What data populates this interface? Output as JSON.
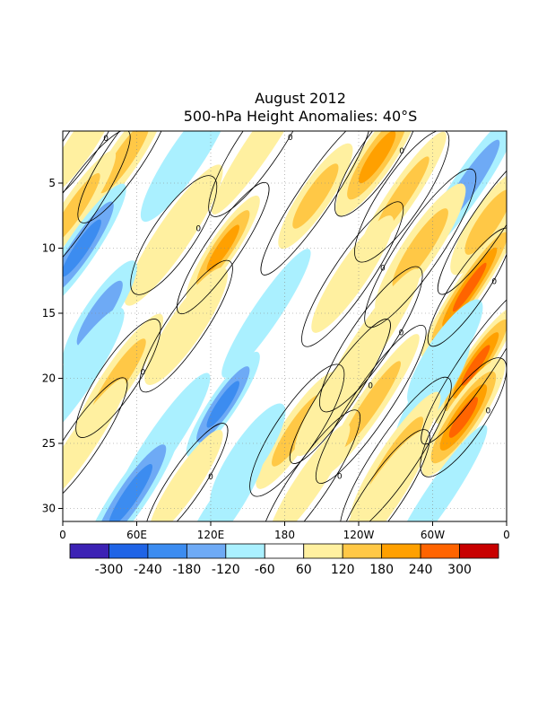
{
  "chart_data": {
    "type": "heatmap",
    "title": "August 2012",
    "subtitle": "500-hPa Height Anomalies: 40°S",
    "x_ticks": [
      "0",
      "60E",
      "120E",
      "180",
      "120W",
      "60W",
      "0"
    ],
    "y_ticks": [
      "5",
      "10",
      "15",
      "20",
      "25",
      "30"
    ],
    "y_tick_values": [
      5,
      10,
      15,
      20,
      25,
      30
    ],
    "ylim": [
      31,
      1
    ],
    "xlim_degrees_east": [
      0,
      360
    ],
    "grid": "dotted",
    "colorbar": {
      "labels": [
        "-300",
        "-240",
        "-180",
        "-120",
        "-60",
        "60",
        "120",
        "180",
        "240",
        "300"
      ],
      "colors": [
        "#3c22b4",
        "#1f64e6",
        "#3c8cf0",
        "#6eaaf5",
        "#aaf0ff",
        "#ffffff",
        "#fff0a0",
        "#ffc846",
        "#ffa000",
        "#ff6400",
        "#c80000"
      ]
    },
    "contour_label": "0",
    "anomaly_bands": [
      {
        "lon": 15,
        "day": 2,
        "value": 100
      },
      {
        "lon": 50,
        "day": 3,
        "value": 120
      },
      {
        "lon": 100,
        "day": 3,
        "value": -80
      },
      {
        "lon": 160,
        "day": 2,
        "value": 90
      },
      {
        "lon": 205,
        "day": 6,
        "value": 140
      },
      {
        "lon": 255,
        "day": 3,
        "value": 230
      },
      {
        "lon": 275,
        "day": 6,
        "value": 160
      },
      {
        "lon": 330,
        "day": 5,
        "value": -150
      },
      {
        "lon": 345,
        "day": 8,
        "value": 120
      },
      {
        "lon": 10,
        "day": 7,
        "value": 120
      },
      {
        "lon": 15,
        "day": 10,
        "value": -180
      },
      {
        "lon": 90,
        "day": 9,
        "value": 100
      },
      {
        "lon": 130,
        "day": 10,
        "value": 200
      },
      {
        "lon": 235,
        "day": 12,
        "value": 90
      },
      {
        "lon": 290,
        "day": 10,
        "value": 150
      },
      {
        "lon": 330,
        "day": 13,
        "value": 240
      },
      {
        "lon": 30,
        "day": 15,
        "value": -140
      },
      {
        "lon": 100,
        "day": 16,
        "value": 110
      },
      {
        "lon": 165,
        "day": 15,
        "value": -90
      },
      {
        "lon": 250,
        "day": 17,
        "value": 100
      },
      {
        "lon": 310,
        "day": 18,
        "value": -90
      },
      {
        "lon": 335,
        "day": 19,
        "value": 260
      },
      {
        "lon": 45,
        "day": 20,
        "value": 150
      },
      {
        "lon": 10,
        "day": 20,
        "value": -110
      },
      {
        "lon": 130,
        "day": 22,
        "value": -220
      },
      {
        "lon": 190,
        "day": 24,
        "value": 120
      },
      {
        "lon": 225,
        "day": 21,
        "value": 100
      },
      {
        "lon": 250,
        "day": 22,
        "value": 140
      },
      {
        "lon": 300,
        "day": 21,
        "value": -80
      },
      {
        "lon": 325,
        "day": 23,
        "value": 290
      },
      {
        "lon": 15,
        "day": 25,
        "value": 90
      },
      {
        "lon": 80,
        "day": 25,
        "value": -100
      },
      {
        "lon": 150,
        "day": 26,
        "value": -90
      },
      {
        "lon": 200,
        "day": 28,
        "value": 110
      },
      {
        "lon": 270,
        "day": 26,
        "value": 160
      },
      {
        "lon": 55,
        "day": 29,
        "value": -230
      },
      {
        "lon": 100,
        "day": 28,
        "value": 100
      },
      {
        "lon": 130,
        "day": 30,
        "value": -80
      },
      {
        "lon": 260,
        "day": 29,
        "value": 90
      },
      {
        "lon": 305,
        "day": 29,
        "value": -100
      }
    ]
  }
}
